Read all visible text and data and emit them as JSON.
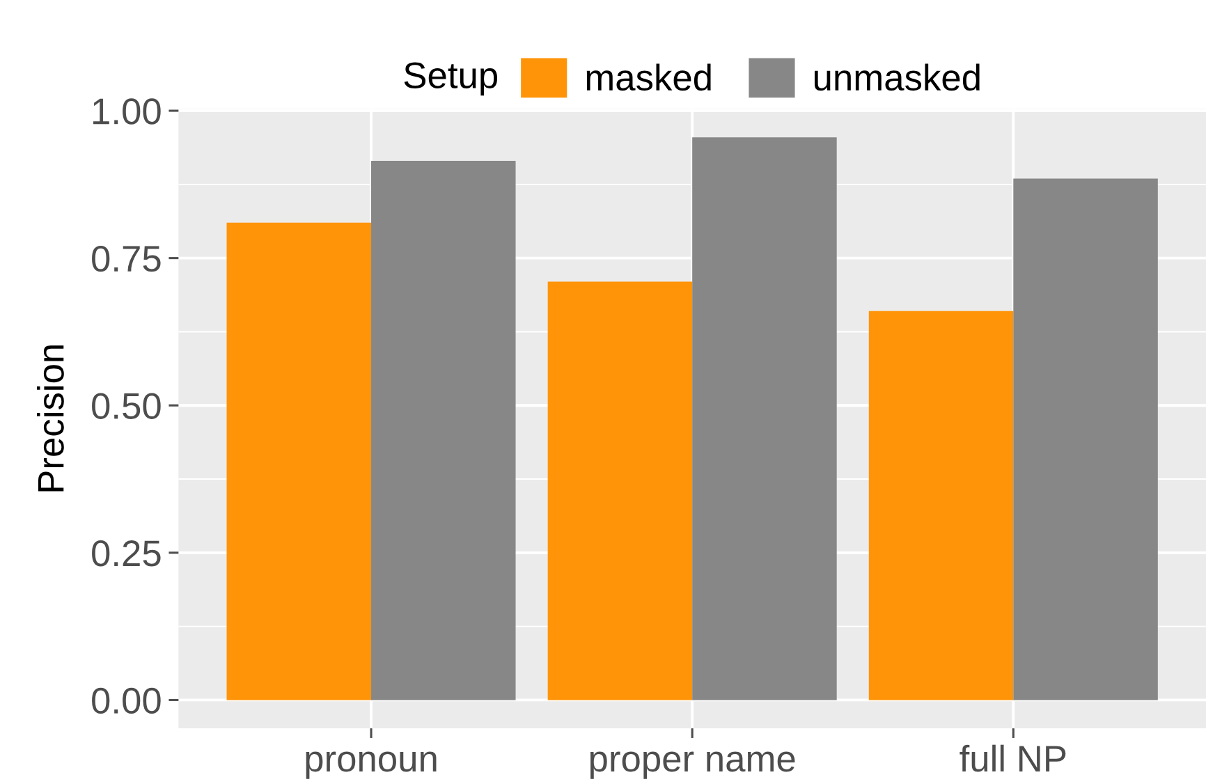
{
  "chart_data": {
    "type": "bar",
    "ylabel": "Precision",
    "legend_title": "Setup",
    "categories": [
      "pronoun",
      "proper name",
      "full NP"
    ],
    "series": [
      {
        "name": "masked",
        "color": "#ff9408",
        "values": [
          0.81,
          0.71,
          0.66
        ]
      },
      {
        "name": "unmasked",
        "color": "#878787",
        "values": [
          0.915,
          0.955,
          0.885
        ]
      }
    ],
    "ylim": [
      -0.048,
      1.003
    ],
    "yticks": [
      {
        "value": 0,
        "label": "0.00"
      },
      {
        "value": 0.125,
        "label": null
      },
      {
        "value": 0.25,
        "label": "0.25"
      },
      {
        "value": 0.375,
        "label": null
      },
      {
        "value": 0.5,
        "label": "0.50"
      },
      {
        "value": 0.625,
        "label": null
      },
      {
        "value": 0.75,
        "label": "0.75"
      },
      {
        "value": 0.875,
        "label": null
      },
      {
        "value": 1,
        "label": "1.00"
      }
    ],
    "grid": true,
    "legend": "top"
  }
}
